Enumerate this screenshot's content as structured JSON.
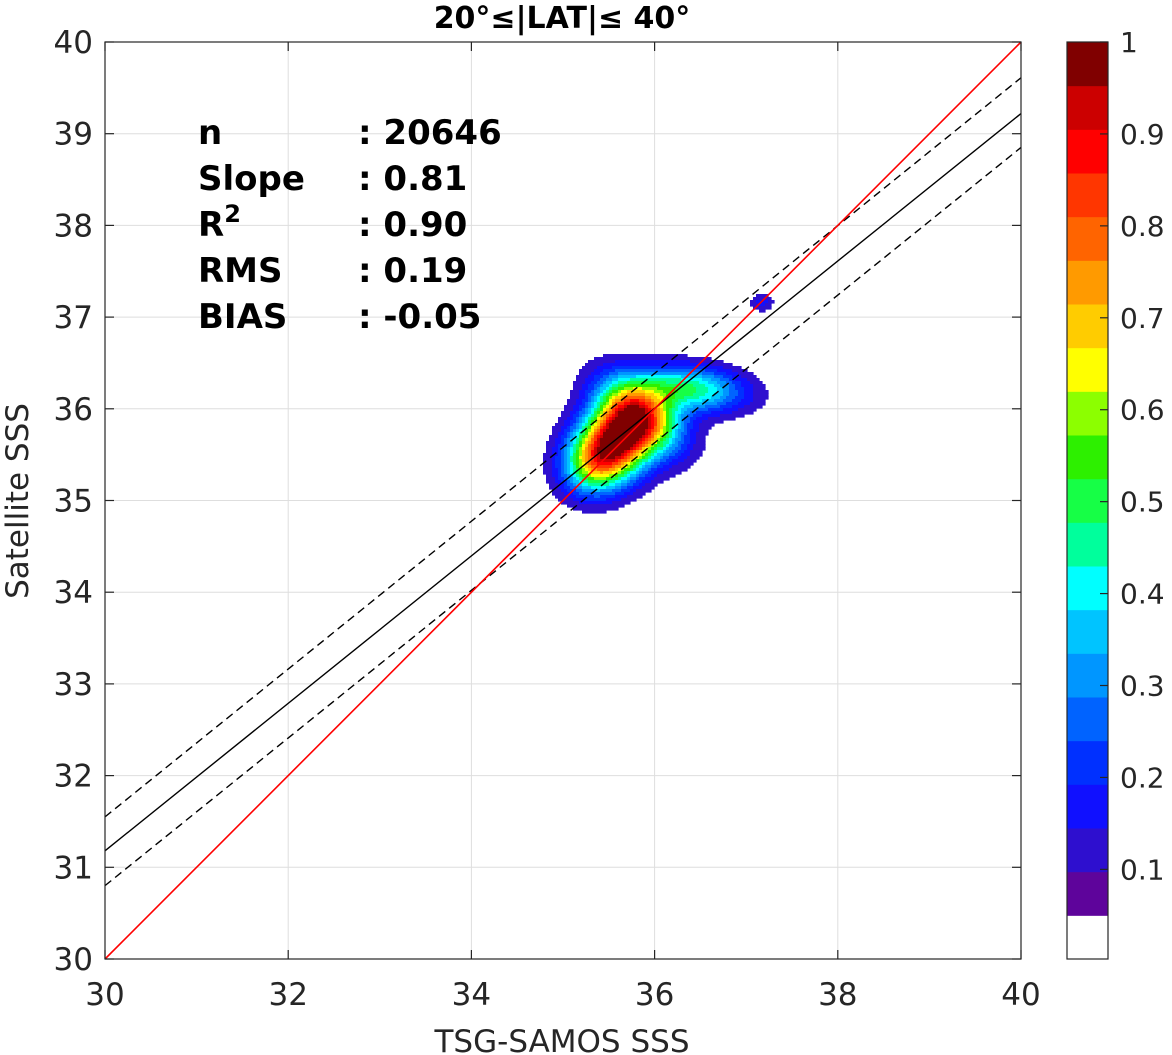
{
  "chart_data": {
    "type": "heatmap",
    "title": "20°≤|LAT|≤ 40°",
    "xlabel": "TSG-SAMOS SSS",
    "ylabel": "Satellite SSS",
    "xlim": [
      30,
      40
    ],
    "ylim": [
      30,
      40
    ],
    "xticks": [
      30,
      32,
      34,
      36,
      38,
      40
    ],
    "yticks": [
      30,
      31,
      32,
      33,
      34,
      35,
      36,
      37,
      38,
      39,
      40
    ],
    "grid": true,
    "stats": [
      {
        "label": "n",
        "value": ": 20646"
      },
      {
        "label": "Slope",
        "value": ": 0.81"
      },
      {
        "label": "R",
        "sup": "2",
        "value": ": 0.90"
      },
      {
        "label": "RMS",
        "value": ": 0.19"
      },
      {
        "label": "BIAS",
        "value": ": -0.05"
      }
    ],
    "lines": {
      "identity": {
        "from": [
          30,
          30
        ],
        "to": [
          40,
          40
        ],
        "color": "#ff0000"
      },
      "regression": {
        "from": [
          30,
          31.18
        ],
        "to": [
          40,
          39.22
        ],
        "color": "#000000"
      },
      "upper_bound": {
        "from": [
          30,
          31.55
        ],
        "to": [
          40,
          39.61
        ],
        "color": "#000000",
        "dash": true
      },
      "lower_bound": {
        "from": [
          30,
          30.8
        ],
        "to": [
          40,
          38.85
        ],
        "color": "#000000",
        "dash": true
      }
    },
    "density_blobs": [
      {
        "cx": 35.56,
        "cy": 35.63,
        "sx": 0.26,
        "sy": 0.34,
        "rot": -46,
        "amp": 1.0
      },
      {
        "cx": 35.85,
        "cy": 35.95,
        "sx": 0.36,
        "sy": 0.22,
        "rot": -38,
        "amp": 0.55
      },
      {
        "cx": 36.4,
        "cy": 36.22,
        "sx": 0.4,
        "sy": 0.17,
        "rot": -5,
        "amp": 0.44
      },
      {
        "cx": 35.3,
        "cy": 35.35,
        "sx": 0.22,
        "sy": 0.2,
        "rot": 0,
        "amp": 0.18
      },
      {
        "cx": 37.17,
        "cy": 37.16,
        "sx": 0.09,
        "sy": 0.07,
        "rot": 0,
        "amp": 0.12
      }
    ],
    "colorbar": {
      "range": [
        0,
        1
      ],
      "tick_labels": [
        "0.1",
        "0.2",
        "0.3",
        "0.4",
        "0.5",
        "0.6",
        "0.7",
        "0.8",
        "0.9",
        "1"
      ],
      "tick_values": [
        0.1,
        0.2,
        0.3,
        0.4,
        0.5,
        0.6,
        0.7,
        0.8,
        0.9,
        1.0
      ],
      "bins": 20,
      "colors": [
        "#ffffff",
        "#5e049b",
        "#2e0fcf",
        "#1010ff",
        "#0030ff",
        "#0063ff",
        "#0096ff",
        "#00c4ff",
        "#00ffff",
        "#00ff9c",
        "#16ff46",
        "#2df000",
        "#8cff00",
        "#ffff00",
        "#ffcc00",
        "#ff9a00",
        "#ff6400",
        "#ff3600",
        "#ff0000",
        "#cc0000",
        "#800000"
      ]
    }
  }
}
